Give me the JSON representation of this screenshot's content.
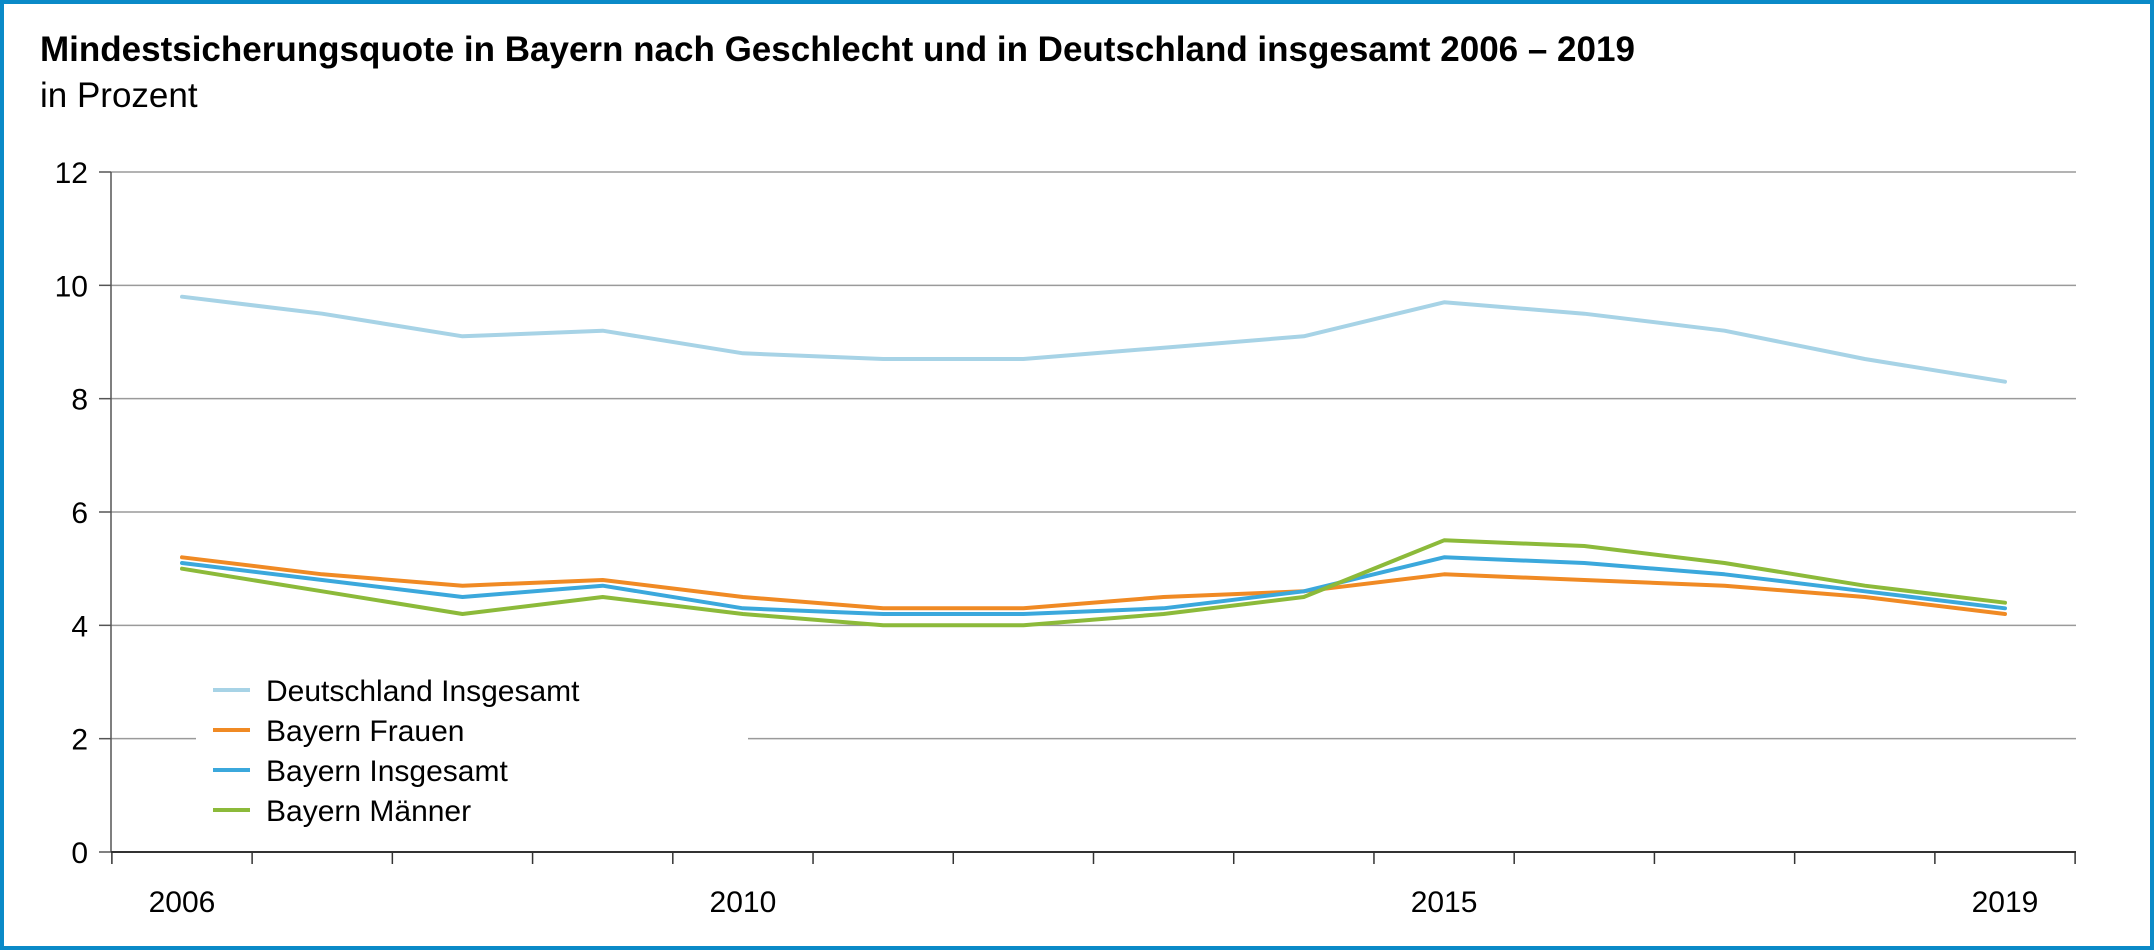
{
  "chart_data": {
    "type": "line",
    "title": "Mindestsicherungsquote in Bayern nach Geschlecht und in Deutschland insgesamt 2006 – 2019",
    "subtitle": "in Prozent",
    "xlabel": "",
    "ylabel": "",
    "x": [
      2006,
      2007,
      2008,
      2009,
      2010,
      2011,
      2012,
      2013,
      2014,
      2015,
      2016,
      2017,
      2018,
      2019
    ],
    "x_tick_labels": [
      "2006",
      "2010",
      "2015",
      "2019"
    ],
    "y_tick_labels": [
      "0",
      "2",
      "4",
      "6",
      "8",
      "10",
      "12"
    ],
    "ylim": [
      0,
      12
    ],
    "grid": "horizontal",
    "legend_position": "bottom-left",
    "series": [
      {
        "name": "Deutschland Insgesamt",
        "color": "#a7d3e6",
        "values": [
          9.8,
          9.5,
          9.1,
          9.2,
          8.8,
          8.7,
          8.7,
          8.9,
          9.1,
          9.7,
          9.5,
          9.2,
          8.7,
          8.3
        ]
      },
      {
        "name": "Bayern Frauen",
        "color": "#f08a24",
        "values": [
          5.2,
          4.9,
          4.7,
          4.8,
          4.5,
          4.3,
          4.3,
          4.5,
          4.6,
          4.9,
          4.8,
          4.7,
          4.5,
          4.2
        ]
      },
      {
        "name": "Bayern Insgesamt",
        "color": "#3ba8dc",
        "values": [
          5.1,
          4.8,
          4.5,
          4.7,
          4.3,
          4.2,
          4.2,
          4.3,
          4.6,
          5.2,
          5.1,
          4.9,
          4.6,
          4.3
        ]
      },
      {
        "name": "Bayern Männer",
        "color": "#8cba3a",
        "values": [
          5.0,
          4.6,
          4.2,
          4.5,
          4.2,
          4.0,
          4.0,
          4.2,
          4.5,
          5.5,
          5.4,
          5.1,
          4.7,
          4.4
        ]
      }
    ]
  }
}
